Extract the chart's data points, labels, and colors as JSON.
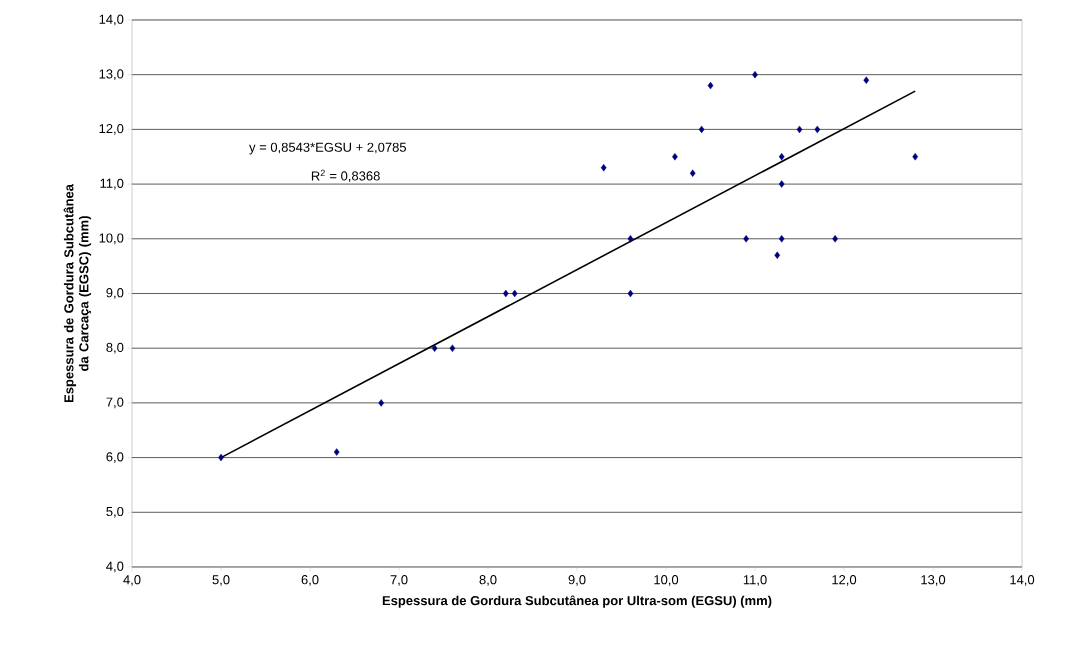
{
  "chart_data": {
    "type": "scatter",
    "xlabel": "Espessura de Gordura Subcutânea por Ultra-som (EGSU) (mm)",
    "ylabel": "Espessura de Gordura Subcutânea da Carcaça (EGSC) (mm)",
    "xlim": [
      4,
      14
    ],
    "ylim": [
      4,
      14
    ],
    "xticks": [
      {
        "value": 4,
        "label": "4,0"
      },
      {
        "value": 5,
        "label": "5,0"
      },
      {
        "value": 6,
        "label": "6,0"
      },
      {
        "value": 7,
        "label": "7,0"
      },
      {
        "value": 8,
        "label": "8,0"
      },
      {
        "value": 9,
        "label": "9,0"
      },
      {
        "value": 10,
        "label": "10,0"
      },
      {
        "value": 11,
        "label": "11,0"
      },
      {
        "value": 12,
        "label": "12,0"
      },
      {
        "value": 13,
        "label": "13,0"
      },
      {
        "value": 14,
        "label": "14,0"
      }
    ],
    "yticks": [
      {
        "value": 4,
        "label": "4,0"
      },
      {
        "value": 5,
        "label": "5,0"
      },
      {
        "value": 6,
        "label": "6,0"
      },
      {
        "value": 7,
        "label": "7,0"
      },
      {
        "value": 8,
        "label": "8,0"
      },
      {
        "value": 9,
        "label": "9,0"
      },
      {
        "value": 10,
        "label": "10,0"
      },
      {
        "value": 11,
        "label": "11,0"
      },
      {
        "value": 12,
        "label": "12,0"
      },
      {
        "value": 13,
        "label": "13,0"
      },
      {
        "value": 14,
        "label": "14,0"
      }
    ],
    "grid": "y",
    "series": [
      {
        "color": "#000080",
        "marker": "diamond",
        "x": [
          5.0,
          6.3,
          6.8,
          7.4,
          7.6,
          8.2,
          8.3,
          9.3,
          9.6,
          9.6,
          10.1,
          10.3,
          10.4,
          10.5,
          11.0,
          10.9,
          11.25,
          11.3,
          11.3,
          11.3,
          11.5,
          11.7,
          11.9,
          12.25,
          12.8
        ],
        "values": [
          6.0,
          6.1,
          7.0,
          8.0,
          8.0,
          9.0,
          9.0,
          11.3,
          10.0,
          9.0,
          11.5,
          11.2,
          12.0,
          12.8,
          13.0,
          10.0,
          9.7,
          11.5,
          11.0,
          10.0,
          12.0,
          12.0,
          10.0,
          12.9,
          11.5
        ]
      },
      {
        "type": "line",
        "color": "#000000",
        "marker": "none",
        "x": [
          5.0,
          12.8
        ],
        "values": [
          6.0,
          12.7
        ]
      }
    ],
    "annotations": [
      "y = 0,8543*EGSU + 2,0785",
      "R$^{2}$ = 0,8368"
    ]
  }
}
